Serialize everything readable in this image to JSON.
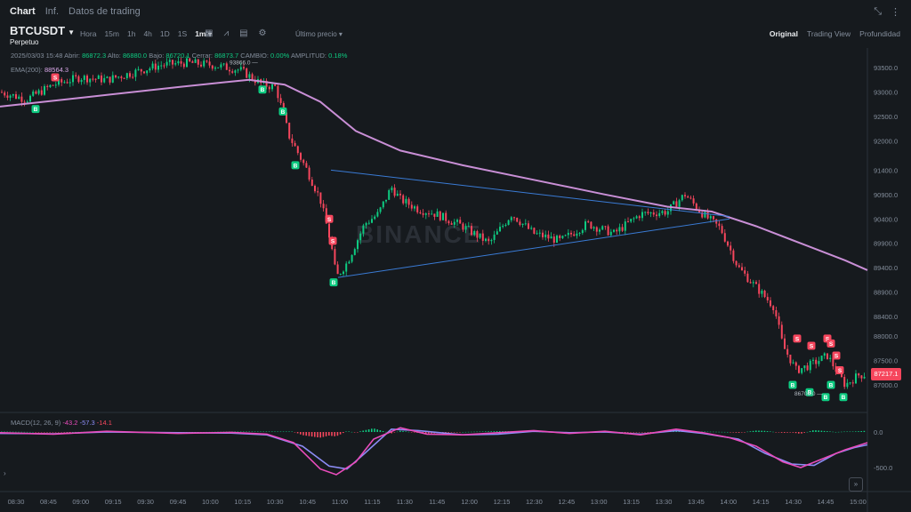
{
  "tabs": [
    {
      "label": "Chart",
      "active": true
    },
    {
      "label": "Inf.",
      "active": false
    },
    {
      "label": "Datos de trading",
      "active": false
    }
  ],
  "symbol": {
    "name": "BTCUSDT",
    "type": "Perpetuo"
  },
  "intervals": [
    "Hora",
    "15m",
    "1h",
    "4h",
    "1D",
    "1S",
    "1m ▾"
  ],
  "active_interval": "1m ▾",
  "price_type": "Último precio ▾",
  "views": [
    "Original",
    "Trading View",
    "Profundidad"
  ],
  "ohlc": {
    "date": "2025/03/03 15:48",
    "open_label": "Abrir:",
    "open": "86872.3",
    "high_label": "Alto:",
    "high": "86880.0",
    "low_label": "Bajo:",
    "low": "86720.1",
    "close_label": "Cerrar:",
    "close": "86873.7",
    "change_label": "CAMBIO:",
    "change": "0.00%",
    "amp_label": "AMPLITUD:",
    "amp": "0.18%"
  },
  "ema": {
    "label": "EMA(200):",
    "value": "88564.3"
  },
  "macd": {
    "label": "MACD(12, 26, 9)",
    "v1": "-43.2",
    "v2": "-57.3",
    "v3": "-14.1"
  },
  "last_price": "87217.1",
  "watermark": "BINANCE",
  "annotations": {
    "high_marker": "93866.0",
    "low_marker": "86700.0"
  },
  "colors": {
    "up": "#0ecb81",
    "down": "#f6465d",
    "ema": "#c98fd6",
    "trend": "#3a7bd5",
    "macd_line": "#e84cbb",
    "signal_line": "#8c8cf5"
  },
  "chart_data": {
    "type": "candlestick",
    "y_ticks": [
      93500,
      93000,
      92500,
      92000,
      91400,
      90900,
      90400,
      89900,
      89400,
      88900,
      88400,
      88000,
      87500,
      87000
    ],
    "x_ticks": [
      "08:30",
      "08:45",
      "09:00",
      "09:15",
      "09:30",
      "09:45",
      "10:00",
      "10:15",
      "10:30",
      "10:45",
      "11:00",
      "11:15",
      "11:30",
      "11:45",
      "12:00",
      "12:15",
      "12:30",
      "12:45",
      "13:00",
      "13:15",
      "13:30",
      "13:45",
      "14:00",
      "14:15",
      "14:30",
      "14:45",
      "15:00"
    ],
    "macd_ticks": [
      "0.0",
      "-500.0"
    ],
    "close_path": [
      [
        0,
        93000
      ],
      [
        30,
        92850
      ],
      [
        60,
        93150
      ],
      [
        90,
        93300
      ],
      [
        120,
        93250
      ],
      [
        150,
        93400
      ],
      [
        180,
        93550
      ],
      [
        210,
        93600
      ],
      [
        240,
        93550
      ],
      [
        270,
        93450
      ],
      [
        295,
        93150
      ],
      [
        310,
        93100
      ],
      [
        325,
        92100
      ],
      [
        345,
        91400
      ],
      [
        360,
        90800
      ],
      [
        372,
        89900
      ],
      [
        378,
        89200
      ],
      [
        390,
        89500
      ],
      [
        410,
        90300
      ],
      [
        425,
        90500
      ],
      [
        440,
        91050
      ],
      [
        450,
        90800
      ],
      [
        470,
        90600
      ],
      [
        490,
        90500
      ],
      [
        520,
        90250
      ],
      [
        550,
        89900
      ],
      [
        575,
        90500
      ],
      [
        600,
        90100
      ],
      [
        630,
        89950
      ],
      [
        660,
        90300
      ],
      [
        690,
        90100
      ],
      [
        720,
        90500
      ],
      [
        750,
        90550
      ],
      [
        770,
        90900
      ],
      [
        790,
        90500
      ],
      [
        810,
        90200
      ],
      [
        830,
        89400
      ],
      [
        850,
        89000
      ],
      [
        870,
        88600
      ],
      [
        880,
        87800
      ],
      [
        895,
        87300
      ],
      [
        910,
        87400
      ],
      [
        930,
        87600
      ],
      [
        950,
        87000
      ],
      [
        965,
        87200
      ],
      [
        975,
        87217
      ]
    ],
    "ema_path": [
      [
        0,
        92700
      ],
      [
        100,
        92900
      ],
      [
        200,
        93100
      ],
      [
        280,
        93250
      ],
      [
        320,
        93150
      ],
      [
        360,
        92800
      ],
      [
        400,
        92200
      ],
      [
        450,
        91800
      ],
      [
        520,
        91500
      ],
      [
        600,
        91200
      ],
      [
        680,
        90900
      ],
      [
        750,
        90650
      ],
      [
        800,
        90550
      ],
      [
        850,
        90250
      ],
      [
        900,
        89900
      ],
      [
        950,
        89550
      ],
      [
        975,
        89350
      ]
    ],
    "trend_upper": [
      [
        372,
        91400
      ],
      [
        820,
        90450
      ]
    ],
    "trend_lower": [
      [
        380,
        89200
      ],
      [
        820,
        90400
      ]
    ],
    "buy_markers": [
      [
        40,
        92650
      ],
      [
        295,
        93050
      ],
      [
        318,
        92600
      ],
      [
        332,
        91500
      ],
      [
        375,
        89100
      ],
      [
        891,
        87000
      ],
      [
        910,
        86850
      ],
      [
        928,
        86750
      ],
      [
        934,
        87000
      ],
      [
        948,
        86750
      ]
    ],
    "sell_markers": [
      [
        62,
        93300
      ],
      [
        370,
        90400
      ],
      [
        374,
        89950
      ],
      [
        896,
        87950
      ],
      [
        912,
        87800
      ],
      [
        930,
        87950
      ],
      [
        934,
        87850
      ],
      [
        940,
        87600
      ],
      [
        944,
        87300
      ]
    ],
    "macd_path": [
      [
        0,
        -10
      ],
      [
        60,
        -30
      ],
      [
        120,
        10
      ],
      [
        200,
        -20
      ],
      [
        260,
        -5
      ],
      [
        300,
        -30
      ],
      [
        330,
        -150
      ],
      [
        360,
        -520
      ],
      [
        378,
        -600
      ],
      [
        400,
        -420
      ],
      [
        420,
        -100
      ],
      [
        450,
        60
      ],
      [
        480,
        -30
      ],
      [
        520,
        -40
      ],
      [
        560,
        -10
      ],
      [
        600,
        20
      ],
      [
        640,
        -20
      ],
      [
        680,
        10
      ],
      [
        720,
        -40
      ],
      [
        760,
        40
      ],
      [
        790,
        -10
      ],
      [
        820,
        -80
      ],
      [
        850,
        -200
      ],
      [
        880,
        -420
      ],
      [
        900,
        -500
      ],
      [
        930,
        -350
      ],
      [
        950,
        -250
      ],
      [
        975,
        -150
      ]
    ],
    "signal_path": [
      [
        0,
        -20
      ],
      [
        60,
        -25
      ],
      [
        120,
        0
      ],
      [
        200,
        -10
      ],
      [
        260,
        -15
      ],
      [
        300,
        -40
      ],
      [
        340,
        -200
      ],
      [
        370,
        -480
      ],
      [
        390,
        -520
      ],
      [
        410,
        -300
      ],
      [
        440,
        40
      ],
      [
        470,
        20
      ],
      [
        520,
        -40
      ],
      [
        560,
        -30
      ],
      [
        600,
        10
      ],
      [
        640,
        -10
      ],
      [
        680,
        0
      ],
      [
        720,
        -30
      ],
      [
        760,
        20
      ],
      [
        790,
        -20
      ],
      [
        830,
        -100
      ],
      [
        860,
        -300
      ],
      [
        890,
        -450
      ],
      [
        915,
        -470
      ],
      [
        940,
        -300
      ],
      [
        960,
        -220
      ],
      [
        975,
        -180
      ]
    ]
  }
}
